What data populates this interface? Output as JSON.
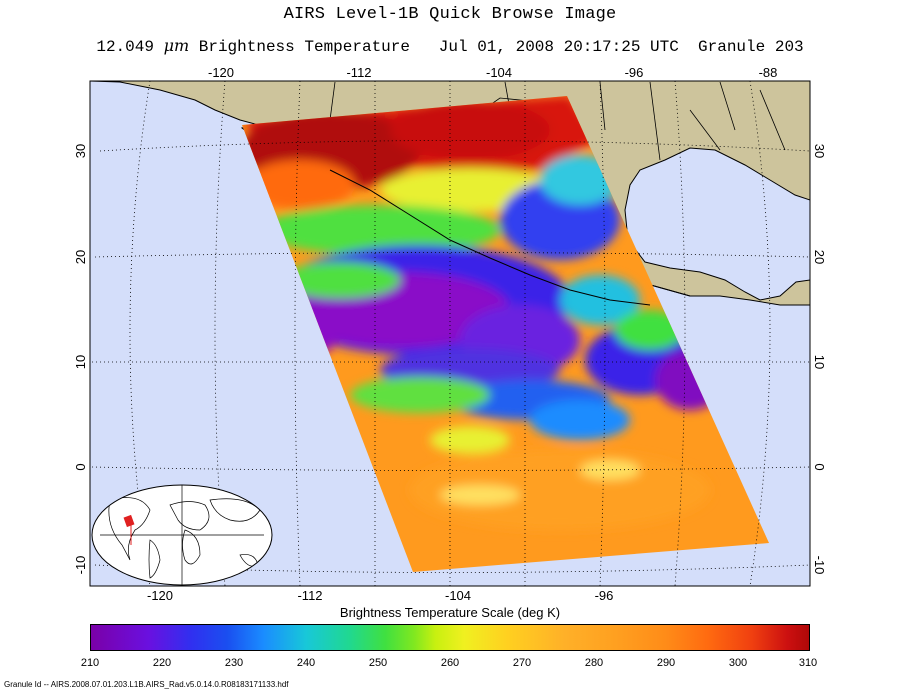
{
  "header": {
    "title": "AIRS Level-1B Quick Browse Image",
    "subtitle_wavelength": "12.049",
    "subtitle_unit": "μm",
    "subtitle_rest": " Brightness Temperature   Jul 01, 2008 20:17:25 UTC  Granule 203"
  },
  "map": {
    "top_lon_labels": [
      "-120",
      "-112",
      "-104",
      "-96",
      "-88"
    ],
    "bottom_lon_labels": [
      "-120",
      "-112",
      "-104",
      "-96"
    ],
    "left_lat_labels": [
      "30",
      "20",
      "10",
      "0",
      "-10"
    ],
    "right_lat_labels": [
      "30",
      "20",
      "10",
      "0",
      "-10"
    ],
    "colors": {
      "ocean": "#d4defa",
      "land": "#cdc49c",
      "swath_base": "#ff9a1e"
    }
  },
  "scale": {
    "title": "Brightness Temperature Scale (deg K)",
    "labels": [
      "210",
      "220",
      "230",
      "240",
      "250",
      "260",
      "270",
      "280",
      "290",
      "300",
      "310"
    ]
  },
  "footer": {
    "granule_id": "Granule Id -- AIRS.2008.07.01.203.L1B.AIRS_Rad.v5.0.14.0.R08183171133.hdf"
  }
}
